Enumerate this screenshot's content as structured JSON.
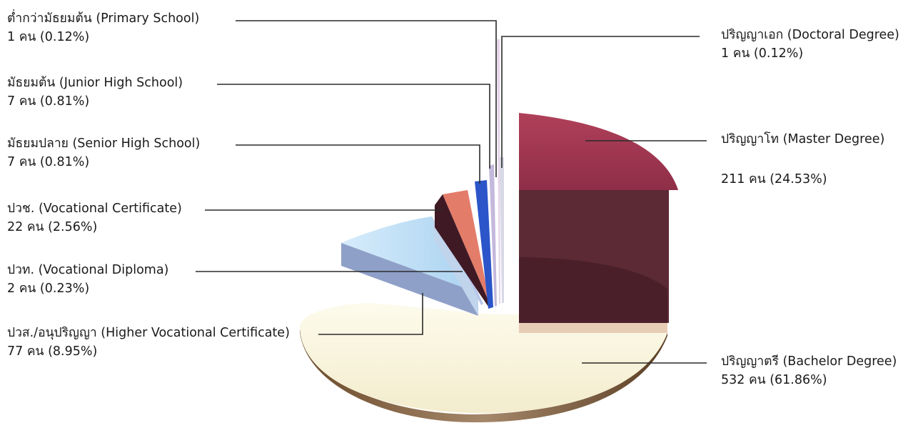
{
  "chart_data": {
    "type": "pie",
    "unit": "คน",
    "slices": [
      {
        "name": "ต่ำกว่ามัธยมต้น (Primary School)",
        "count": 1,
        "percent": 0.12,
        "value_label": "1 คน (0.12%)",
        "color": "#e6d6ea"
      },
      {
        "name": "ปริญญาเอก (Doctoral Degree)",
        "count": 1,
        "percent": 0.12,
        "value_label": "1 คน (0.12%)",
        "color": "#d8d8e6"
      },
      {
        "name": "มัธยมต้น (Junior High School)",
        "count": 7,
        "percent": 0.81,
        "value_label": "7 คน (0.81%)",
        "color": "#c4b8dc"
      },
      {
        "name": "มัธยมปลาย (Senior High School)",
        "count": 7,
        "percent": 0.81,
        "value_label": "7 คน (0.81%)",
        "color": "#2b55c9"
      },
      {
        "name": "ปวช. (Vocational Certificate)",
        "count": 22,
        "percent": 2.56,
        "value_label": "22 คน (2.56%)",
        "color": "#e07a6a"
      },
      {
        "name": "ปวท. (Vocational Diploma)",
        "count": 2,
        "percent": 0.23,
        "value_label": "2 คน (0.23%)",
        "color": "#b9c6ea"
      },
      {
        "name": "ปวส./อนุปริญญา (Higher Vocational Certificate)",
        "count": 77,
        "percent": 8.95,
        "value_label": "77 คน (8.95%)",
        "color": "#b8dcf4"
      },
      {
        "name": "ปริญญาโท (Master Degree)",
        "count": 211,
        "percent": 24.53,
        "value_label": "211 คน (24.53%)",
        "color": "#a3344e"
      },
      {
        "name": "ปริญญาตรี (Bachelor Degree)",
        "count": 532,
        "percent": 61.86,
        "value_label": "532 คน (61.86%)",
        "color": "#fbf8e4"
      }
    ]
  }
}
